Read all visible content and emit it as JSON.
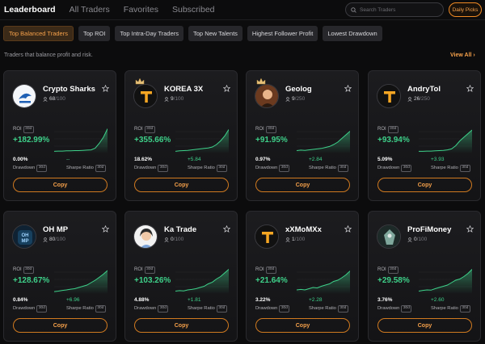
{
  "nav": {
    "tabs": [
      {
        "label": "Leaderboard",
        "active": true
      },
      {
        "label": "All Traders",
        "active": false
      },
      {
        "label": "Favorites",
        "active": false
      },
      {
        "label": "Subscribed",
        "active": false
      }
    ],
    "search_placeholder": "Search Traders",
    "daily_picks": "Daily Picks"
  },
  "chips": [
    {
      "label": "Top Balanced Traders",
      "active": true
    },
    {
      "label": "Top ROI",
      "active": false
    },
    {
      "label": "Top Intra-Day Traders",
      "active": false
    },
    {
      "label": "Top New Talents",
      "active": false
    },
    {
      "label": "Highest Follower Profit",
      "active": false
    },
    {
      "label": "Lowest Drawdown",
      "active": false
    }
  ],
  "subtitle": "Traders that balance profit and risk.",
  "view_all": "View All",
  "labels": {
    "roi": "ROI",
    "period": "30d",
    "drawdown": "Drawdown",
    "sharpe": "Sharpe Ratio",
    "copy": "Copy"
  },
  "colors": {
    "accent": "#f08a24",
    "positive": "#3ed18a"
  },
  "traders": [
    {
      "name": "Crypto Sharks",
      "followers": "68",
      "max": "100",
      "roi": "+182.99%",
      "drawdown": "0.00%",
      "sharpe": "--",
      "avatar": "sharks-logo",
      "crown": false
    },
    {
      "name": "KOREA 3X",
      "followers": "9",
      "max": "100",
      "roi": "+355.66%",
      "drawdown": "18.62%",
      "sharpe": "+5.84",
      "avatar": "t-logo",
      "crown": true
    },
    {
      "name": "Geolog",
      "followers": "9",
      "max": "250",
      "roi": "+91.95%",
      "drawdown": "0.97%",
      "sharpe": "+2.84",
      "avatar": "geolog-photo",
      "crown": true
    },
    {
      "name": "AndryTol",
      "followers": "26",
      "max": "250",
      "roi": "+93.94%",
      "drawdown": "5.09%",
      "sharpe": "+3.93",
      "avatar": "t-logo",
      "crown": false
    },
    {
      "name": "OH MP",
      "followers": "80",
      "max": "100",
      "roi": "+128.67%",
      "drawdown": "0.84%",
      "sharpe": "+6.96",
      "avatar": "ohmp-logo",
      "crown": false
    },
    {
      "name": "Ka Trade",
      "followers": "0",
      "max": "100",
      "roi": "+103.26%",
      "drawdown": "4.88%",
      "sharpe": "+1.81",
      "avatar": "katrade-photo",
      "crown": false
    },
    {
      "name": "xXMoMXx",
      "followers": "1",
      "max": "100",
      "roi": "+21.64%",
      "drawdown": "3.22%",
      "sharpe": "+2.28",
      "avatar": "t-logo",
      "crown": false
    },
    {
      "name": "ProFiMoney",
      "followers": "0",
      "max": "100",
      "roi": "+29.58%",
      "drawdown": "3.76%",
      "sharpe": "+2.60",
      "avatar": "profimoney-logo",
      "crown": false
    }
  ]
}
